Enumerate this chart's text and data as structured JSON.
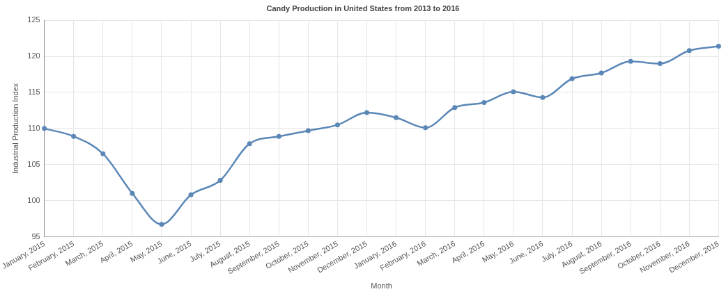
{
  "chart_data": {
    "type": "line",
    "title": "Candy Production in United States from 2013 to 2016",
    "xlabel": "Month",
    "ylabel": "Industrial Production Index",
    "categories": [
      "January, 2015",
      "February, 2015",
      "March, 2015",
      "April, 2015",
      "May, 2015",
      "June, 2015",
      "July, 2015",
      "August, 2015",
      "September, 2015",
      "October, 2015",
      "November, 2015",
      "December, 2015",
      "January, 2016",
      "February, 2016",
      "March, 2016",
      "April, 2016",
      "May, 2016",
      "June, 2016",
      "July, 2016",
      "August, 2016",
      "September, 2016",
      "October, 2016",
      "November, 2016",
      "December, 2016"
    ],
    "series": [
      {
        "color": "#5b87b7",
        "values": [
          110.0,
          108.9,
          106.5,
          101.0,
          96.7,
          100.8,
          102.8,
          107.9,
          108.9,
          109.7,
          110.5,
          112.2,
          111.5,
          110.1,
          112.9,
          113.6,
          115.1,
          114.3,
          116.9,
          117.7,
          119.3,
          119.0,
          120.8,
          121.4
        ]
      }
    ],
    "ylim": [
      95,
      125
    ],
    "yticks": [
      95,
      100,
      105,
      110,
      115,
      120,
      125
    ],
    "grid": true,
    "marker": "circle",
    "line_style": "solid"
  }
}
